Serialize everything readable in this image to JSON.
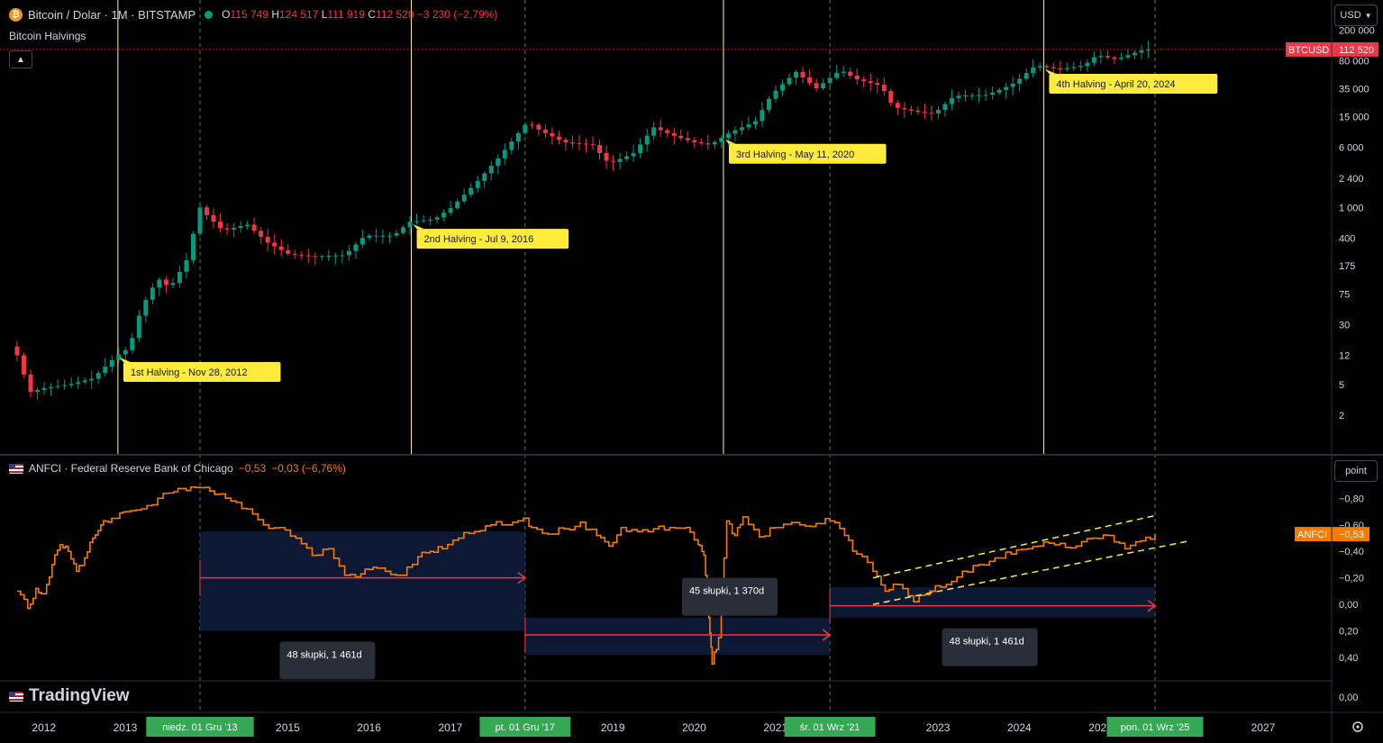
{
  "header": {
    "symbol": "Bitcoin / Dolar · 1M · BITSTAMP",
    "open_label": "O",
    "open": "115 749",
    "high_label": "H",
    "high": "124 517",
    "low_label": "L",
    "low": "111 919",
    "close_label": "C",
    "close": "112 520",
    "change": "−3 230 (−2,79%)",
    "indicator": "Bitcoin Halvings"
  },
  "currency_button": "USD",
  "unit_button": "point",
  "anfci_header": {
    "name": "ANFCI · Federal Reserve Bank of Chicago",
    "value": "−0,53",
    "change": "−0,03 (−6,76%)"
  },
  "logo_text": "TradingView",
  "colors": {
    "up": "#089981",
    "down": "#f23645",
    "anfci": "#f57c00",
    "halving_line": "#fff59d",
    "label_bg": "#ffeb3b",
    "measure": "#f23645",
    "date_badge": "#34a853"
  },
  "chart_data": [
    {
      "type": "candlestick",
      "title": "Bitcoin / Dolar · 1M · BITSTAMP",
      "yscale": "log",
      "ylim": [
        1.2,
        220000
      ],
      "y_ticks": [
        "200 000",
        "80 000",
        "35 000",
        "15 000",
        "6 000",
        "2 400",
        "1 000",
        "400",
        "175",
        "75",
        "30",
        "12",
        "5",
        "2"
      ],
      "y_tick_values": [
        200000,
        80000,
        35000,
        15000,
        6000,
        2400,
        1000,
        400,
        175,
        75,
        30,
        12,
        5,
        2
      ],
      "last_price_label": "BTCUSD",
      "last_price": "112 520",
      "anchors": [
        {
          "t": 2011.67,
          "p": 12
        },
        {
          "t": 2011.83,
          "p": 4
        },
        {
          "t": 2012.0,
          "p": 4.5
        },
        {
          "t": 2012.3,
          "p": 5
        },
        {
          "t": 2012.6,
          "p": 6
        },
        {
          "t": 2012.9,
          "p": 12
        },
        {
          "t": 2013.05,
          "p": 15
        },
        {
          "t": 2013.2,
          "p": 50
        },
        {
          "t": 2013.4,
          "p": 120
        },
        {
          "t": 2013.55,
          "p": 90
        },
        {
          "t": 2013.75,
          "p": 200
        },
        {
          "t": 2013.92,
          "p": 1000
        },
        {
          "t": 2014.0,
          "p": 800
        },
        {
          "t": 2014.2,
          "p": 500
        },
        {
          "t": 2014.5,
          "p": 600
        },
        {
          "t": 2014.75,
          "p": 350
        },
        {
          "t": 2015.0,
          "p": 250
        },
        {
          "t": 2015.3,
          "p": 230
        },
        {
          "t": 2015.7,
          "p": 240
        },
        {
          "t": 2015.95,
          "p": 430
        },
        {
          "t": 2016.3,
          "p": 430
        },
        {
          "t": 2016.5,
          "p": 650
        },
        {
          "t": 2016.8,
          "p": 700
        },
        {
          "t": 2017.0,
          "p": 970
        },
        {
          "t": 2017.3,
          "p": 2000
        },
        {
          "t": 2017.6,
          "p": 4500
        },
        {
          "t": 2017.95,
          "p": 13000
        },
        {
          "t": 2018.1,
          "p": 10000
        },
        {
          "t": 2018.4,
          "p": 7000
        },
        {
          "t": 2018.75,
          "p": 6500
        },
        {
          "t": 2018.95,
          "p": 3700
        },
        {
          "t": 2019.25,
          "p": 5000
        },
        {
          "t": 2019.5,
          "p": 11000
        },
        {
          "t": 2019.75,
          "p": 8500
        },
        {
          "t": 2020.0,
          "p": 7000
        },
        {
          "t": 2020.2,
          "p": 6500
        },
        {
          "t": 2020.45,
          "p": 9500
        },
        {
          "t": 2020.75,
          "p": 13000
        },
        {
          "t": 2020.95,
          "p": 29000
        },
        {
          "t": 2021.25,
          "p": 58000
        },
        {
          "t": 2021.5,
          "p": 35000
        },
        {
          "t": 2021.8,
          "p": 61000
        },
        {
          "t": 2022.0,
          "p": 46000
        },
        {
          "t": 2022.3,
          "p": 38000
        },
        {
          "t": 2022.45,
          "p": 20000
        },
        {
          "t": 2022.8,
          "p": 17000
        },
        {
          "t": 2022.95,
          "p": 16500
        },
        {
          "t": 2023.2,
          "p": 28000
        },
        {
          "t": 2023.6,
          "p": 29000
        },
        {
          "t": 2023.8,
          "p": 35000
        },
        {
          "t": 2023.95,
          "p": 42000
        },
        {
          "t": 2024.2,
          "p": 70000
        },
        {
          "t": 2024.5,
          "p": 62000
        },
        {
          "t": 2024.8,
          "p": 70000
        },
        {
          "t": 2024.95,
          "p": 95000
        },
        {
          "t": 2025.2,
          "p": 84000
        },
        {
          "t": 2025.45,
          "p": 105000
        },
        {
          "t": 2025.6,
          "p": 118000
        },
        {
          "t": 2025.67,
          "p": 112520
        }
      ],
      "halvings": [
        {
          "t": 2012.91,
          "label": "1st Halving - Nov 28, 2012"
        },
        {
          "t": 2016.52,
          "label": "2nd Halving - Jul 9, 2016"
        },
        {
          "t": 2020.36,
          "label": "3rd Halving - May 11, 2020"
        },
        {
          "t": 2024.3,
          "label": "4th Halving - April 20, 2024"
        }
      ]
    },
    {
      "type": "line",
      "title": "ANFCI · Federal Reserve Bank of Chicago",
      "series": [
        {
          "name": "ANFCI"
        }
      ],
      "y_inverted": true,
      "ylim": [
        -0.85,
        0.4
      ],
      "y_ticks": [
        "−0,80",
        "−0,60",
        "−0,40",
        "−0,20",
        "0,00",
        "0,20",
        "0,40"
      ],
      "y_tick_values": [
        -0.8,
        -0.6,
        -0.4,
        -0.2,
        0.0,
        0.2,
        0.4
      ],
      "last_value_label": "ANFCI",
      "last_value": "−0,53",
      "x": [
        2011.67,
        2011.8,
        2011.9,
        2012.0,
        2012.1,
        2012.2,
        2012.3,
        2012.4,
        2012.5,
        2012.6,
        2012.7,
        2012.8,
        2012.9,
        2013.0,
        2013.2,
        2013.4,
        2013.6,
        2013.75,
        2013.92,
        2014.1,
        2014.3,
        2014.5,
        2014.7,
        2014.9,
        2015.1,
        2015.3,
        2015.5,
        2015.7,
        2015.9,
        2016.05,
        2016.2,
        2016.4,
        2016.6,
        2016.75,
        2016.9,
        2017.1,
        2017.3,
        2017.5,
        2017.7,
        2017.9,
        2018.0,
        2018.2,
        2018.4,
        2018.6,
        2018.8,
        2018.95,
        2019.1,
        2019.3,
        2019.5,
        2019.7,
        2019.9,
        2020.05,
        2020.12,
        2020.18,
        2020.22,
        2020.3,
        2020.4,
        2020.5,
        2020.6,
        2020.8,
        2021.0,
        2021.3,
        2021.5,
        2021.67,
        2021.85,
        2022.0,
        2022.2,
        2022.35,
        2022.5,
        2022.7,
        2022.9,
        2023.1,
        2023.3,
        2023.5,
        2023.7,
        2023.9,
        2024.1,
        2024.3,
        2024.5,
        2024.7,
        2024.9,
        2025.1,
        2025.3,
        2025.5,
        2025.67
      ],
      "y": [
        -0.1,
        0.03,
        -0.12,
        -0.08,
        -0.3,
        -0.45,
        -0.4,
        -0.25,
        -0.35,
        -0.5,
        -0.6,
        -0.62,
        -0.65,
        -0.7,
        -0.72,
        -0.8,
        -0.85,
        -0.86,
        -0.88,
        -0.83,
        -0.78,
        -0.72,
        -0.6,
        -0.58,
        -0.5,
        -0.37,
        -0.42,
        -0.22,
        -0.23,
        -0.28,
        -0.25,
        -0.22,
        -0.36,
        -0.4,
        -0.42,
        -0.5,
        -0.55,
        -0.6,
        -0.6,
        -0.65,
        -0.58,
        -0.53,
        -0.57,
        -0.62,
        -0.52,
        -0.44,
        -0.58,
        -0.55,
        -0.57,
        -0.58,
        -0.58,
        -0.45,
        -0.37,
        0.1,
        0.45,
        0.25,
        -0.63,
        -0.52,
        -0.66,
        -0.51,
        -0.58,
        -0.6,
        -0.61,
        -0.63,
        -0.52,
        -0.38,
        -0.25,
        -0.1,
        -0.15,
        -0.02,
        -0.1,
        -0.15,
        -0.25,
        -0.3,
        -0.35,
        -0.38,
        -0.42,
        -0.47,
        -0.46,
        -0.44,
        -0.5,
        -0.52,
        -0.42,
        -0.48,
        -0.53
      ]
    }
  ],
  "x_axis": {
    "years": [
      "2012",
      "2013",
      "2014",
      "2015",
      "2016",
      "2017",
      "2018",
      "2019",
      "2020",
      "2021",
      "2022",
      "2023",
      "2024",
      "2025",
      "2026",
      "2027"
    ],
    "year_values": [
      2012,
      2013,
      2014,
      2015,
      2016,
      2017,
      2018,
      2019,
      2020,
      2021,
      2022,
      2023,
      2024,
      2025,
      2026,
      2027
    ],
    "badges": [
      {
        "t": 2013.92,
        "label": "niedz. 01 Gru '13"
      },
      {
        "t": 2017.92,
        "label": "pt. 01 Gru '17"
      },
      {
        "t": 2021.67,
        "label": "śr. 01 Wrz '21"
      },
      {
        "t": 2025.67,
        "label": "pon. 01 Wrz '25"
      }
    ]
  },
  "measurements": [
    {
      "t0": 2013.92,
      "t1": 2017.92,
      "label": "48 słupki, 1 461d"
    },
    {
      "t0": 2017.92,
      "t1": 2021.67,
      "label": "45 słupki, 1 370d"
    },
    {
      "t0": 2021.67,
      "t1": 2025.67,
      "label": "48 słupki, 1 461d"
    }
  ],
  "bottom_axis_value": "0,00"
}
